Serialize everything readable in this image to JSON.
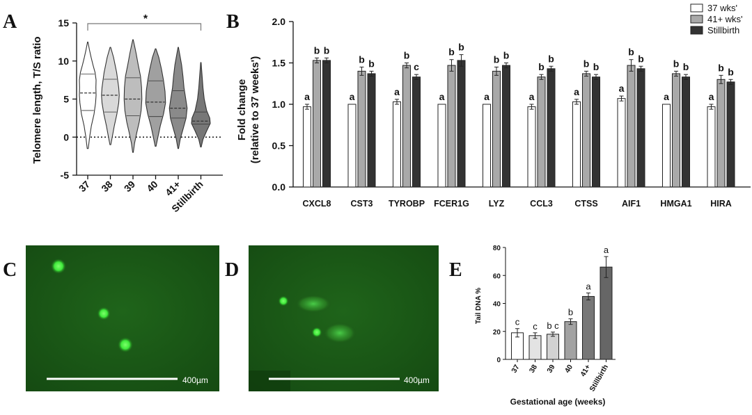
{
  "panel_labels": {
    "a": "A",
    "b": "B",
    "c": "C",
    "d": "D",
    "e": "E"
  },
  "chart_data": [
    {
      "panel": "A",
      "type": "violin",
      "ylabel": "Telomere length, T/S ratio",
      "ylim": [
        -5,
        15
      ],
      "yticks": [
        "-5",
        "0",
        "5",
        "10",
        "15"
      ],
      "ytick_values": [
        -5,
        0,
        5,
        10,
        15
      ],
      "categories": [
        "37",
        "38",
        "39",
        "40",
        "41+",
        "Stillbirth"
      ],
      "significance": "*",
      "colors": [
        "#ffffff",
        "#d9d9d9",
        "#bdbdbd",
        "#a0a0a0",
        "#8a8a8a",
        "#777777"
      ],
      "violins": [
        {
          "min": -1.5,
          "max": 12.5,
          "q1": 3.5,
          "median": 5.8,
          "q3": 8.3,
          "widths": [
            [
              -1.5,
              0.05
            ],
            [
              0,
              0.18
            ],
            [
              1.5,
              0.35
            ],
            [
              3,
              0.6
            ],
            [
              4.5,
              0.75
            ],
            [
              5.5,
              0.8
            ],
            [
              6.5,
              0.78
            ],
            [
              7.5,
              0.8
            ],
            [
              8.5,
              0.7
            ],
            [
              9.5,
              0.5
            ],
            [
              10.5,
              0.32
            ],
            [
              11.5,
              0.16
            ],
            [
              12.5,
              0.02
            ]
          ]
        },
        {
          "min": -1.0,
          "max": 11.8,
          "q1": 3.3,
          "median": 5.5,
          "q3": 7.6,
          "widths": [
            [
              -1,
              0.04
            ],
            [
              0,
              0.18
            ],
            [
              1.5,
              0.38
            ],
            [
              3,
              0.62
            ],
            [
              4.5,
              0.8
            ],
            [
              5.5,
              0.85
            ],
            [
              6.5,
              0.8
            ],
            [
              7.5,
              0.7
            ],
            [
              8.5,
              0.6
            ],
            [
              9.5,
              0.45
            ],
            [
              10.5,
              0.3
            ],
            [
              11.8,
              0.03
            ]
          ]
        },
        {
          "min": -2.0,
          "max": 12.8,
          "q1": 2.8,
          "median": 5.0,
          "q3": 7.8,
          "widths": [
            [
              -2,
              0.03
            ],
            [
              -0.8,
              0.15
            ],
            [
              0.5,
              0.35
            ],
            [
              2,
              0.6
            ],
            [
              3.5,
              0.78
            ],
            [
              5,
              0.85
            ],
            [
              6.5,
              0.82
            ],
            [
              8,
              0.72
            ],
            [
              9.5,
              0.5
            ],
            [
              11,
              0.3
            ],
            [
              12,
              0.15
            ],
            [
              12.8,
              0.02
            ]
          ]
        },
        {
          "min": -1.2,
          "max": 11.6,
          "q1": 2.7,
          "median": 4.6,
          "q3": 7.4,
          "widths": [
            [
              -1.2,
              0.04
            ],
            [
              0,
              0.22
            ],
            [
              1.5,
              0.45
            ],
            [
              3,
              0.75
            ],
            [
              4.5,
              0.95
            ],
            [
              6,
              0.9
            ],
            [
              7.5,
              0.75
            ],
            [
              9,
              0.55
            ],
            [
              10.5,
              0.3
            ],
            [
              11.6,
              0.03
            ]
          ]
        },
        {
          "min": -1.5,
          "max": 11.8,
          "q1": 2.5,
          "median": 3.8,
          "q3": 6.1,
          "widths": [
            [
              -1.5,
              0.03
            ],
            [
              -0.2,
              0.2
            ],
            [
              1,
              0.45
            ],
            [
              2.5,
              0.75
            ],
            [
              3.8,
              0.85
            ],
            [
              5,
              0.72
            ],
            [
              6.5,
              0.55
            ],
            [
              8,
              0.45
            ],
            [
              9.5,
              0.32
            ],
            [
              10.8,
              0.15
            ],
            [
              11.8,
              0.02
            ]
          ]
        },
        {
          "min": -1.3,
          "max": 9.8,
          "q1": 1.7,
          "median": 2.1,
          "q3": 3.3,
          "widths": [
            [
              -1.3,
              0.03
            ],
            [
              -0.3,
              0.2
            ],
            [
              0.8,
              0.55
            ],
            [
              1.8,
              0.9
            ],
            [
              2.5,
              0.85
            ],
            [
              3.5,
              0.55
            ],
            [
              5,
              0.32
            ],
            [
              6.5,
              0.2
            ],
            [
              8,
              0.12
            ],
            [
              9.8,
              0.02
            ]
          ]
        }
      ]
    },
    {
      "panel": "B",
      "type": "bar",
      "ylabel": "Fold change",
      "ylabel2": "(relative to 37 weeks')",
      "ylim": [
        0,
        2.0
      ],
      "yticks": [
        "0.0",
        "0.5",
        "1.0",
        "1.5",
        "2.0"
      ],
      "ytick_values": [
        0,
        0.5,
        1.0,
        1.5,
        2.0
      ],
      "categories": [
        "CXCL8",
        "CST3",
        "TYROBP",
        "FCER1G",
        "LYZ",
        "CCL3",
        "CTSS",
        "AIF1",
        "HMGA1",
        "HIRA"
      ],
      "legend": [
        "37 wks'",
        "41+ wks'",
        "Stillbirth"
      ],
      "colors": [
        "#ffffff",
        "#a9a9a9",
        "#333333"
      ],
      "series": [
        {
          "name": "37 wks'",
          "values": [
            0.97,
            1.0,
            1.03,
            1.0,
            1.0,
            0.97,
            1.03,
            1.07,
            1.0,
            0.97
          ],
          "errors": [
            0.03,
            0.0,
            0.03,
            0.0,
            0.0,
            0.03,
            0.03,
            0.03,
            0.0,
            0.03
          ],
          "letters": [
            "a",
            "a",
            "a",
            "a",
            "a",
            "a",
            "a",
            "a",
            "a",
            "a"
          ]
        },
        {
          "name": "41+ wks'",
          "values": [
            1.53,
            1.4,
            1.47,
            1.47,
            1.4,
            1.33,
            1.37,
            1.47,
            1.37,
            1.3
          ],
          "errors": [
            0.03,
            0.05,
            0.03,
            0.07,
            0.05,
            0.03,
            0.03,
            0.07,
            0.03,
            0.05
          ],
          "letters": [
            "b",
            "b",
            "b",
            "b",
            "b",
            "b",
            "b",
            "b",
            "b",
            "b"
          ]
        },
        {
          "name": "Stillbirth",
          "values": [
            1.53,
            1.37,
            1.33,
            1.53,
            1.47,
            1.43,
            1.33,
            1.43,
            1.33,
            1.27
          ],
          "errors": [
            0.03,
            0.03,
            0.03,
            0.07,
            0.03,
            0.03,
            0.03,
            0.03,
            0.03,
            0.03
          ],
          "letters": [
            "b",
            "b",
            "c",
            "b",
            "b",
            "b",
            "b",
            "b",
            "b",
            "b"
          ]
        }
      ]
    },
    {
      "panel": "C",
      "type": "image",
      "scale_label": "400µm"
    },
    {
      "panel": "D",
      "type": "image",
      "scale_label": "400µm"
    },
    {
      "panel": "E",
      "type": "bar",
      "ylabel": "Tail DNA %",
      "xlabel": "Gestational age (weeks)",
      "ylim": [
        0,
        80
      ],
      "yticks": [
        "0",
        "20",
        "40",
        "60",
        "80"
      ],
      "ytick_values": [
        0,
        20,
        40,
        60,
        80
      ],
      "categories": [
        "37",
        "38",
        "39",
        "40",
        "41+",
        "Stillbirth"
      ],
      "values": [
        19,
        17,
        18,
        27,
        45,
        66
      ],
      "errors": [
        3,
        2,
        1.5,
        2,
        2.5,
        7.5
      ],
      "letters": [
        "c",
        "c",
        "b c",
        "b",
        "a",
        "a"
      ],
      "colors": [
        "#ffffff",
        "#e3e3e3",
        "#d2d2d2",
        "#a2a2a2",
        "#777777",
        "#666666"
      ]
    }
  ]
}
